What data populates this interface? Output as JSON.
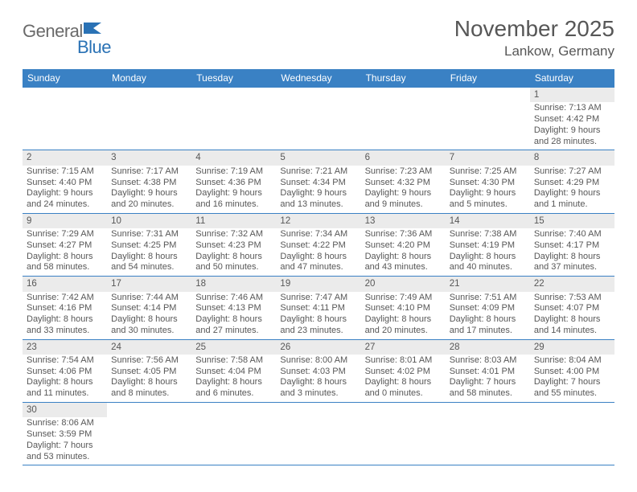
{
  "brand": {
    "part1": "General",
    "part2": "Blue"
  },
  "title": "November 2025",
  "location": "Lankow, Germany",
  "colors": {
    "header_bg": "#3a81c4",
    "header_text": "#ffffff",
    "daynum_bg": "#ebebeb",
    "text": "#575757",
    "rule": "#3a81c4",
    "logo_blue": "#2a72b5",
    "logo_gray": "#6a6a6a"
  },
  "weekdays": [
    "Sunday",
    "Monday",
    "Tuesday",
    "Wednesday",
    "Thursday",
    "Friday",
    "Saturday"
  ],
  "weeks": [
    [
      {
        "empty": true
      },
      {
        "empty": true
      },
      {
        "empty": true
      },
      {
        "empty": true
      },
      {
        "empty": true
      },
      {
        "empty": true
      },
      {
        "n": "1",
        "sunrise": "Sunrise: 7:13 AM",
        "sunset": "Sunset: 4:42 PM",
        "dl1": "Daylight: 9 hours",
        "dl2": "and 28 minutes."
      }
    ],
    [
      {
        "n": "2",
        "sunrise": "Sunrise: 7:15 AM",
        "sunset": "Sunset: 4:40 PM",
        "dl1": "Daylight: 9 hours",
        "dl2": "and 24 minutes."
      },
      {
        "n": "3",
        "sunrise": "Sunrise: 7:17 AM",
        "sunset": "Sunset: 4:38 PM",
        "dl1": "Daylight: 9 hours",
        "dl2": "and 20 minutes."
      },
      {
        "n": "4",
        "sunrise": "Sunrise: 7:19 AM",
        "sunset": "Sunset: 4:36 PM",
        "dl1": "Daylight: 9 hours",
        "dl2": "and 16 minutes."
      },
      {
        "n": "5",
        "sunrise": "Sunrise: 7:21 AM",
        "sunset": "Sunset: 4:34 PM",
        "dl1": "Daylight: 9 hours",
        "dl2": "and 13 minutes."
      },
      {
        "n": "6",
        "sunrise": "Sunrise: 7:23 AM",
        "sunset": "Sunset: 4:32 PM",
        "dl1": "Daylight: 9 hours",
        "dl2": "and 9 minutes."
      },
      {
        "n": "7",
        "sunrise": "Sunrise: 7:25 AM",
        "sunset": "Sunset: 4:30 PM",
        "dl1": "Daylight: 9 hours",
        "dl2": "and 5 minutes."
      },
      {
        "n": "8",
        "sunrise": "Sunrise: 7:27 AM",
        "sunset": "Sunset: 4:29 PM",
        "dl1": "Daylight: 9 hours",
        "dl2": "and 1 minute."
      }
    ],
    [
      {
        "n": "9",
        "sunrise": "Sunrise: 7:29 AM",
        "sunset": "Sunset: 4:27 PM",
        "dl1": "Daylight: 8 hours",
        "dl2": "and 58 minutes."
      },
      {
        "n": "10",
        "sunrise": "Sunrise: 7:31 AM",
        "sunset": "Sunset: 4:25 PM",
        "dl1": "Daylight: 8 hours",
        "dl2": "and 54 minutes."
      },
      {
        "n": "11",
        "sunrise": "Sunrise: 7:32 AM",
        "sunset": "Sunset: 4:23 PM",
        "dl1": "Daylight: 8 hours",
        "dl2": "and 50 minutes."
      },
      {
        "n": "12",
        "sunrise": "Sunrise: 7:34 AM",
        "sunset": "Sunset: 4:22 PM",
        "dl1": "Daylight: 8 hours",
        "dl2": "and 47 minutes."
      },
      {
        "n": "13",
        "sunrise": "Sunrise: 7:36 AM",
        "sunset": "Sunset: 4:20 PM",
        "dl1": "Daylight: 8 hours",
        "dl2": "and 43 minutes."
      },
      {
        "n": "14",
        "sunrise": "Sunrise: 7:38 AM",
        "sunset": "Sunset: 4:19 PM",
        "dl1": "Daylight: 8 hours",
        "dl2": "and 40 minutes."
      },
      {
        "n": "15",
        "sunrise": "Sunrise: 7:40 AM",
        "sunset": "Sunset: 4:17 PM",
        "dl1": "Daylight: 8 hours",
        "dl2": "and 37 minutes."
      }
    ],
    [
      {
        "n": "16",
        "sunrise": "Sunrise: 7:42 AM",
        "sunset": "Sunset: 4:16 PM",
        "dl1": "Daylight: 8 hours",
        "dl2": "and 33 minutes."
      },
      {
        "n": "17",
        "sunrise": "Sunrise: 7:44 AM",
        "sunset": "Sunset: 4:14 PM",
        "dl1": "Daylight: 8 hours",
        "dl2": "and 30 minutes."
      },
      {
        "n": "18",
        "sunrise": "Sunrise: 7:46 AM",
        "sunset": "Sunset: 4:13 PM",
        "dl1": "Daylight: 8 hours",
        "dl2": "and 27 minutes."
      },
      {
        "n": "19",
        "sunrise": "Sunrise: 7:47 AM",
        "sunset": "Sunset: 4:11 PM",
        "dl1": "Daylight: 8 hours",
        "dl2": "and 23 minutes."
      },
      {
        "n": "20",
        "sunrise": "Sunrise: 7:49 AM",
        "sunset": "Sunset: 4:10 PM",
        "dl1": "Daylight: 8 hours",
        "dl2": "and 20 minutes."
      },
      {
        "n": "21",
        "sunrise": "Sunrise: 7:51 AM",
        "sunset": "Sunset: 4:09 PM",
        "dl1": "Daylight: 8 hours",
        "dl2": "and 17 minutes."
      },
      {
        "n": "22",
        "sunrise": "Sunrise: 7:53 AM",
        "sunset": "Sunset: 4:07 PM",
        "dl1": "Daylight: 8 hours",
        "dl2": "and 14 minutes."
      }
    ],
    [
      {
        "n": "23",
        "sunrise": "Sunrise: 7:54 AM",
        "sunset": "Sunset: 4:06 PM",
        "dl1": "Daylight: 8 hours",
        "dl2": "and 11 minutes."
      },
      {
        "n": "24",
        "sunrise": "Sunrise: 7:56 AM",
        "sunset": "Sunset: 4:05 PM",
        "dl1": "Daylight: 8 hours",
        "dl2": "and 8 minutes."
      },
      {
        "n": "25",
        "sunrise": "Sunrise: 7:58 AM",
        "sunset": "Sunset: 4:04 PM",
        "dl1": "Daylight: 8 hours",
        "dl2": "and 6 minutes."
      },
      {
        "n": "26",
        "sunrise": "Sunrise: 8:00 AM",
        "sunset": "Sunset: 4:03 PM",
        "dl1": "Daylight: 8 hours",
        "dl2": "and 3 minutes."
      },
      {
        "n": "27",
        "sunrise": "Sunrise: 8:01 AM",
        "sunset": "Sunset: 4:02 PM",
        "dl1": "Daylight: 8 hours",
        "dl2": "and 0 minutes."
      },
      {
        "n": "28",
        "sunrise": "Sunrise: 8:03 AM",
        "sunset": "Sunset: 4:01 PM",
        "dl1": "Daylight: 7 hours",
        "dl2": "and 58 minutes."
      },
      {
        "n": "29",
        "sunrise": "Sunrise: 8:04 AM",
        "sunset": "Sunset: 4:00 PM",
        "dl1": "Daylight: 7 hours",
        "dl2": "and 55 minutes."
      }
    ],
    [
      {
        "n": "30",
        "sunrise": "Sunrise: 8:06 AM",
        "sunset": "Sunset: 3:59 PM",
        "dl1": "Daylight: 7 hours",
        "dl2": "and 53 minutes."
      },
      {
        "empty": true
      },
      {
        "empty": true
      },
      {
        "empty": true
      },
      {
        "empty": true
      },
      {
        "empty": true
      },
      {
        "empty": true
      }
    ]
  ]
}
